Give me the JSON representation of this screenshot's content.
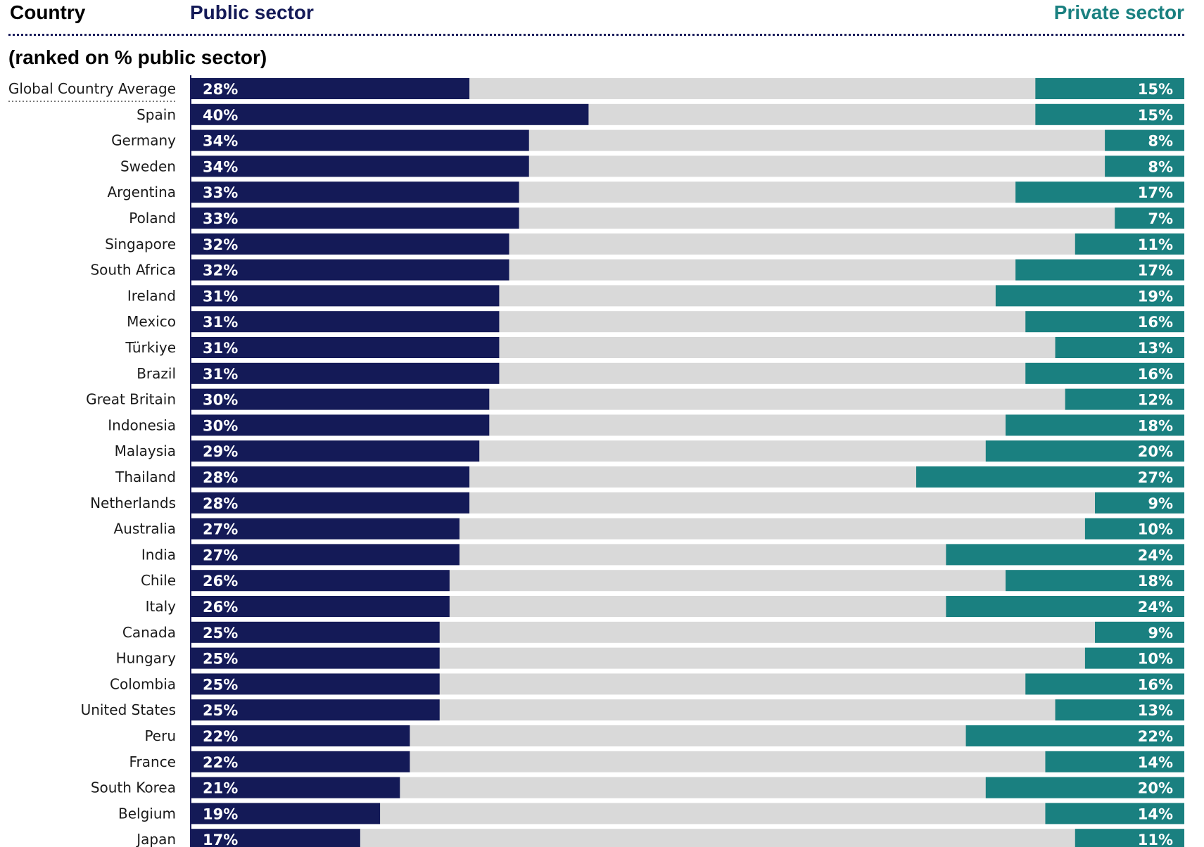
{
  "header": {
    "country_label": "Country",
    "public_label": "Public sector",
    "private_label": "Private sector",
    "subtitle": "(ranked on % public sector)"
  },
  "colors": {
    "public": "#141a57",
    "private": "#1a8080",
    "neutral": "#d9d9d9"
  },
  "chart_data": {
    "type": "bar",
    "orientation": "horizontal-diverging",
    "xlim": [
      0,
      100
    ],
    "categories": [
      "Global Country Average",
      "Spain",
      "Germany",
      "Sweden",
      "Argentina",
      "Poland",
      "Singapore",
      "South Africa",
      "Ireland",
      "Mexico",
      "Türkiye",
      "Brazil",
      "Great Britain",
      "Indonesia",
      "Malaysia",
      "Thailand",
      "Netherlands",
      "Australia",
      "India",
      "Chile",
      "Italy",
      "Canada",
      "Hungary",
      "Colombia",
      "United States",
      "Peru",
      "France",
      "South Korea",
      "Belgium",
      "Japan"
    ],
    "series": [
      {
        "name": "Public sector",
        "values": [
          28,
          40,
          34,
          34,
          33,
          33,
          32,
          32,
          31,
          31,
          31,
          31,
          30,
          30,
          29,
          28,
          28,
          27,
          27,
          26,
          26,
          25,
          25,
          25,
          25,
          22,
          22,
          21,
          19,
          17
        ],
        "labels": [
          "28%",
          "40%",
          "34%",
          "34%",
          "33%",
          "33%",
          "32%",
          "32%",
          "31%",
          "31%",
          "31%",
          "31%",
          "30%",
          "30%",
          "29%",
          "28%",
          "28%",
          "27%",
          "27%",
          "26%",
          "26%",
          "25%",
          "25%",
          "25%",
          "25%",
          "22%",
          "22%",
          "21%",
          "19%",
          "17%"
        ]
      },
      {
        "name": "Private sector",
        "values": [
          15,
          15,
          8,
          8,
          17,
          7,
          11,
          17,
          19,
          16,
          13,
          16,
          12,
          18,
          20,
          27,
          9,
          10,
          24,
          18,
          24,
          9,
          10,
          16,
          13,
          22,
          14,
          20,
          14,
          11
        ],
        "labels": [
          "15%",
          "15%",
          "8%",
          "8%",
          "17%",
          "7%",
          "11%",
          "17%",
          "19%",
          "16%",
          "13%",
          "16%",
          "12%",
          "18%",
          "20%",
          "27%",
          "9%",
          "10%",
          "24%",
          "18%",
          "24%",
          "9%",
          "10%",
          "16%",
          "13%",
          "22%",
          "14%",
          "20%",
          "14%",
          "11%"
        ]
      }
    ]
  }
}
